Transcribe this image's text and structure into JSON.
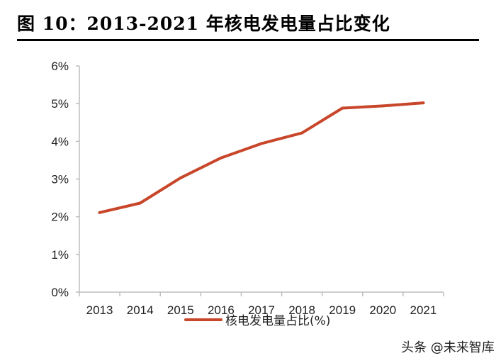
{
  "title": "图 10：2013-2021 年核电发电量占比变化",
  "chart_data": {
    "type": "line",
    "title": "图 10：2013-2021 年核电发电量占比变化",
    "xlabel": "",
    "ylabel": "",
    "x": [
      "2013",
      "2014",
      "2015",
      "2016",
      "2017",
      "2018",
      "2019",
      "2020",
      "2021"
    ],
    "series": [
      {
        "name": "核电发电量占比(%)",
        "values": [
          2.11,
          2.36,
          3.03,
          3.56,
          3.94,
          4.22,
          4.88,
          4.94,
          5.02
        ],
        "color": "#c8462a"
      }
    ],
    "ylim": [
      0,
      6
    ],
    "yticks": [
      "0%",
      "1%",
      "2%",
      "3%",
      "4%",
      "5%",
      "6%"
    ],
    "grid": false,
    "legend": "bottom"
  },
  "watermark": "头条 @未来智库"
}
